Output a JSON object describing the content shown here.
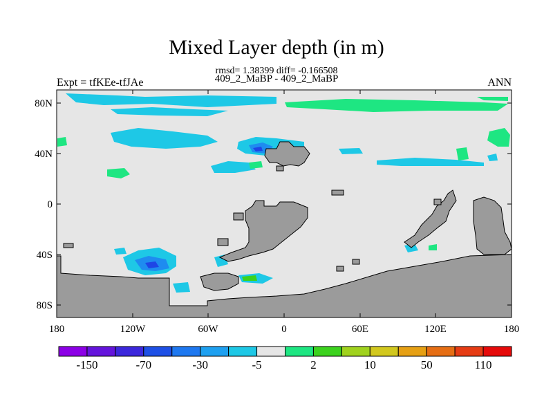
{
  "map": {
    "title": "Mixed Layer depth (in m)",
    "subtitle_line1": "rmsd= 1.38399 diff= -0.166508",
    "subtitle_line2": "409_2_MaBP - 409_2_MaBP",
    "left_label": "Expt = tfKEe-tfJAe",
    "right_label": "ANN",
    "lat_ticks": [
      "80N",
      "40N",
      "0",
      "40S",
      "80S"
    ],
    "lon_ticks": [
      "180",
      "120W",
      "60W",
      "0",
      "60E",
      "120E",
      "180"
    ],
    "colors": {
      "background": "#e6e6e6",
      "land": "#9b9b9b",
      "cyan": "#1ec8e6",
      "mid_blue": "#1e8cf0",
      "dark_blue": "#1e46e6",
      "green": "#1ee682",
      "bright_green": "#3cd21e"
    }
  },
  "colorbar": {
    "colors": [
      "#8c00e6",
      "#6414dc",
      "#3c28dc",
      "#1e50e6",
      "#1e78f0",
      "#1ea0f0",
      "#1ec8e6",
      "#e6e6e6",
      "#1ee682",
      "#3cd21e",
      "#a0d21e",
      "#d2c81e",
      "#e6a014",
      "#e66e14",
      "#e63c14",
      "#e60a0a"
    ],
    "labels": [
      "-150",
      "-70",
      "-30",
      "-5",
      "2",
      "10",
      "50",
      "110"
    ]
  }
}
